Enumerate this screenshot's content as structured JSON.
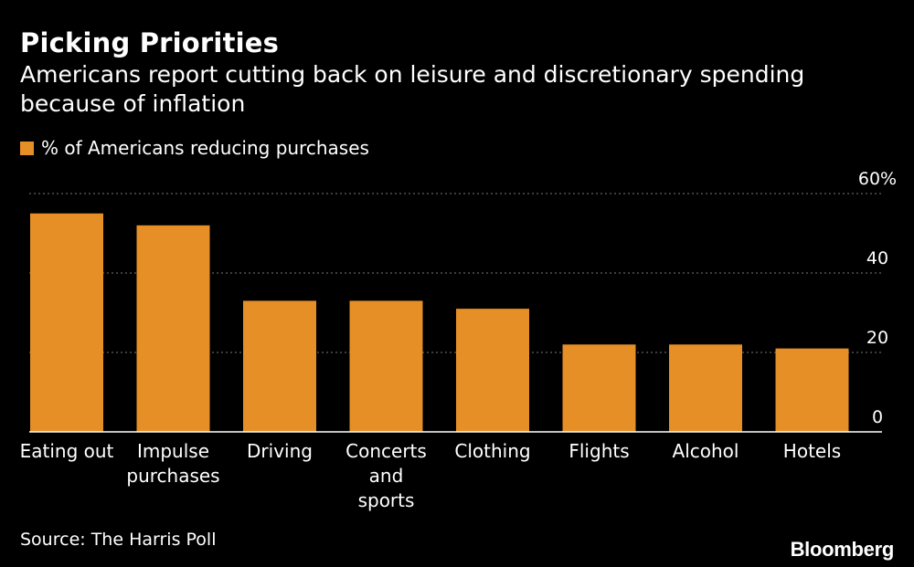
{
  "chart_data": {
    "type": "bar",
    "title": "Picking Priorities",
    "subtitle": "Americans report cutting back on leisure and discretionary spending because of inflation",
    "legend": [
      "% of Americans reducing purchases"
    ],
    "categories": [
      [
        "Eating out"
      ],
      [
        "Impulse",
        "purchases"
      ],
      [
        "Driving"
      ],
      [
        "Concerts",
        "and",
        "sports"
      ],
      [
        "Clothing"
      ],
      [
        "Flights"
      ],
      [
        "Alcohol"
      ],
      [
        "Hotels"
      ]
    ],
    "series": [
      {
        "name": "% of Americans reducing purchases",
        "values": [
          55,
          52,
          33,
          33,
          31,
          22,
          22,
          21
        ]
      }
    ],
    "ylim": [
      0,
      60
    ],
    "yticks": [
      0,
      20,
      40,
      60
    ],
    "ytick_labels": [
      "0",
      "20",
      "40",
      "60%"
    ],
    "ytick_position": "right",
    "grid": true,
    "xlabel": "",
    "ylabel": ""
  },
  "source": "Source: The Harris Poll",
  "brand": "Bloomberg",
  "colors": {
    "bar": "#e68f26",
    "background": "#000000",
    "text": "#ffffff",
    "grid": "#7a7a7a",
    "axis": "#ffffff"
  }
}
